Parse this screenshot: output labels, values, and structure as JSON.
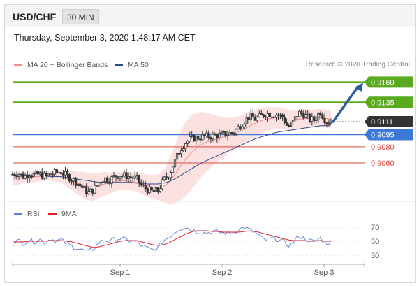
{
  "header": {
    "symbol": "USD/CHF",
    "timeframe": "30 MIN",
    "timestamp": "Thursday, September 3, 2020 1:48:17 AM CET"
  },
  "legend": {
    "ma20_bb": "MA 20 + Bollinger Bands",
    "ma50": "MA 50",
    "credit": "Research © 2020 Trading Central",
    "rsi": "RSI",
    "rsi_ma": "9MA"
  },
  "colors": {
    "resistance": "#5aaa1e",
    "support_red": "#e2463e",
    "pivot": "#3b78d8",
    "current": "#333333",
    "ma20": "#f08a8a",
    "bollinger_fill": "#fbdcdc",
    "ma50": "#2b4a8c",
    "arrow": "#2c5e9e",
    "rsi": "#5b7fd6",
    "rsi_ma": "#d8232a",
    "candle": "#333333"
  },
  "chart_data": [
    {
      "type": "candlestick",
      "x_ticks": [
        "Sep 1",
        "Sep 2",
        "Sep 3"
      ],
      "ylim": [
        0.9015,
        0.9175
      ],
      "levels": [
        {
          "price": 0.916,
          "label": "0.9160",
          "role": "resistance"
        },
        {
          "price": 0.9135,
          "label": "0.9135",
          "role": "resistance"
        },
        {
          "price": 0.9111,
          "label": "0.9111",
          "role": "current"
        },
        {
          "price": 0.9095,
          "label": "0.9095",
          "role": "pivot"
        },
        {
          "price": 0.908,
          "label": "0.9080",
          "role": "support_red"
        },
        {
          "price": 0.906,
          "label": "0.9060",
          "role": "support_red"
        }
      ],
      "close_path": [
        0.9046,
        0.9047,
        0.9043,
        0.9047,
        0.9045,
        0.9046,
        0.9043,
        0.9046,
        0.9048,
        0.9049,
        0.9044,
        0.904,
        0.9035,
        0.9029,
        0.9023,
        0.9027,
        0.9036,
        0.9041,
        0.9039,
        0.9044,
        0.9045,
        0.9044,
        0.9042,
        0.9041,
        0.9031,
        0.9027,
        0.9024,
        0.9026,
        0.9039,
        0.9046,
        0.9061,
        0.9076,
        0.9085,
        0.909,
        0.9091,
        0.9092,
        0.9093,
        0.9093,
        0.9094,
        0.9095,
        0.9096,
        0.9098,
        0.9105,
        0.9112,
        0.9118,
        0.9114,
        0.9118,
        0.9121,
        0.912,
        0.912,
        0.9117,
        0.9104,
        0.9111,
        0.9122,
        0.912,
        0.9114,
        0.9113,
        0.9124,
        0.9112,
        0.9111
      ],
      "ma20_path": [
        0.904,
        0.9041,
        0.9042,
        0.9042,
        0.9043,
        0.9043,
        0.9044,
        0.9044,
        0.9044,
        0.9043,
        0.9041,
        0.9038,
        0.9035,
        0.9033,
        0.9031,
        0.903,
        0.9032,
        0.9034,
        0.9035,
        0.9037,
        0.9038,
        0.9038,
        0.9037,
        0.9036,
        0.9034,
        0.9032,
        0.903,
        0.903,
        0.9031,
        0.9036,
        0.9045,
        0.9055,
        0.9064,
        0.9072,
        0.9078,
        0.9083,
        0.9086,
        0.9088,
        0.909,
        0.9092,
        0.9094,
        0.9096,
        0.9099,
        0.9102,
        0.9106,
        0.9109,
        0.9112,
        0.9114,
        0.9115,
        0.9116,
        0.9115,
        0.9113,
        0.9113,
        0.9114,
        0.9115,
        0.9115,
        0.9115,
        0.9116,
        0.9115,
        0.9114
      ],
      "ma50_path": [
        0.9045,
        0.9045,
        0.9045,
        0.9045,
        0.9044,
        0.9044,
        0.9044,
        0.9043,
        0.9043,
        0.9043,
        0.9042,
        0.9041,
        0.904,
        0.9039,
        0.9038,
        0.9037,
        0.9036,
        0.9036,
        0.9036,
        0.9036,
        0.9036,
        0.9036,
        0.9036,
        0.9035,
        0.9035,
        0.9034,
        0.9034,
        0.9034,
        0.9035,
        0.9037,
        0.904,
        0.9044,
        0.9048,
        0.9052,
        0.9056,
        0.906,
        0.9063,
        0.9066,
        0.9069,
        0.9072,
        0.9075,
        0.9078,
        0.9081,
        0.9084,
        0.9087,
        0.909,
        0.9092,
        0.9094,
        0.9096,
        0.9098,
        0.9099,
        0.91,
        0.9101,
        0.9102,
        0.9103,
        0.9104,
        0.9105,
        0.9106,
        0.9106,
        0.9107
      ],
      "bollinger_width": [
        0.0008,
        0.0008,
        0.0007,
        0.0007,
        0.0007,
        0.0006,
        0.0006,
        0.0006,
        0.0007,
        0.0008,
        0.001,
        0.0012,
        0.0014,
        0.0016,
        0.0017,
        0.0017,
        0.0016,
        0.0015,
        0.0013,
        0.0012,
        0.0011,
        0.0011,
        0.0011,
        0.0012,
        0.0013,
        0.0014,
        0.0015,
        0.0016,
        0.002,
        0.0028,
        0.0036,
        0.0042,
        0.0046,
        0.0046,
        0.0044,
        0.004,
        0.0036,
        0.0032,
        0.0028,
        0.0025,
        0.0022,
        0.002,
        0.0019,
        0.0019,
        0.0018,
        0.0017,
        0.0016,
        0.0015,
        0.0014,
        0.0013,
        0.0013,
        0.0013,
        0.0012,
        0.0012,
        0.0012,
        0.0011,
        0.0011,
        0.0011,
        0.0011,
        0.0011
      ],
      "forecast": {
        "from": 0.9111,
        "to": 0.916
      }
    },
    {
      "type": "line",
      "name": "RSI panel",
      "ylim": [
        20,
        80
      ],
      "y_ticks": [
        70,
        50,
        30
      ],
      "series": [
        {
          "name": "RSI",
          "values": [
            46,
            51,
            47,
            52,
            49,
            53,
            48,
            54,
            50,
            52,
            46,
            43,
            40,
            37,
            35,
            39,
            48,
            52,
            50,
            53,
            54,
            52,
            50,
            49,
            43,
            40,
            37,
            41,
            51,
            56,
            63,
            68,
            70,
            67,
            64,
            63,
            62,
            64,
            63,
            62,
            61,
            63,
            67,
            70,
            66,
            62,
            55,
            51,
            54,
            53,
            50,
            44,
            48,
            58,
            54,
            51,
            49,
            55,
            47,
            49
          ]
        },
        {
          "name": "9MA",
          "values": [
            49,
            49,
            49,
            50,
            50,
            50,
            50,
            51,
            51,
            51,
            50,
            49,
            47,
            45,
            43,
            41,
            42,
            44,
            46,
            48,
            50,
            51,
            51,
            51,
            49,
            47,
            45,
            44,
            45,
            48,
            52,
            56,
            60,
            63,
            65,
            65,
            65,
            64,
            64,
            63,
            63,
            63,
            63,
            64,
            65,
            64,
            62,
            60,
            58,
            56,
            54,
            52,
            51,
            51,
            51,
            50,
            50,
            51,
            50,
            50
          ]
        }
      ]
    }
  ]
}
